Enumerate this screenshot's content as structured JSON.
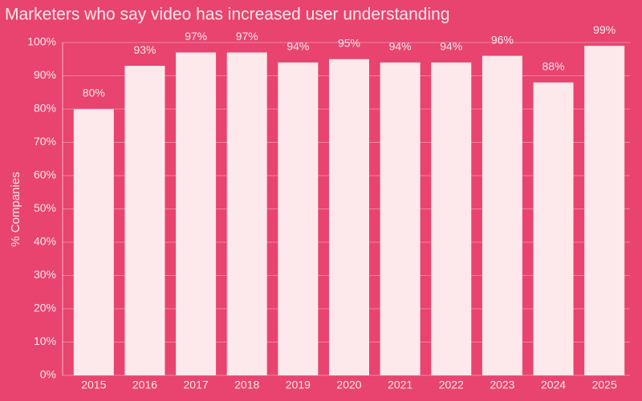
{
  "chart_data": {
    "type": "bar",
    "title": "Marketers who say video has increased user understanding",
    "y_label": "% Companies",
    "categories": [
      "2015",
      "2016",
      "2017",
      "2018",
      "2019",
      "2020",
      "2021",
      "2022",
      "2023",
      "2024",
      "2025"
    ],
    "values": [
      80,
      93,
      97,
      97,
      94,
      95,
      94,
      94,
      96,
      88,
      99
    ],
    "value_labels": [
      "80%",
      "93%",
      "97%",
      "97%",
      "94%",
      "95%",
      "94%",
      "94%",
      "96%",
      "88%",
      "99%"
    ],
    "color": "#fde8ec",
    "ylim": [
      0,
      100
    ],
    "yticks": [
      {
        "value": 0,
        "label": "0%"
      },
      {
        "value": 10,
        "label": "10%"
      },
      {
        "value": 20,
        "label": "20%"
      },
      {
        "value": 30,
        "label": "30%"
      },
      {
        "value": 40,
        "label": "40%"
      },
      {
        "value": 50,
        "label": "50%"
      },
      {
        "value": 60,
        "label": "60%"
      },
      {
        "value": 70,
        "label": "70%"
      },
      {
        "value": 80,
        "label": "80%"
      },
      {
        "value": 90,
        "label": "90%"
      },
      {
        "value": 100,
        "label": "100%"
      }
    ],
    "grid": true
  }
}
